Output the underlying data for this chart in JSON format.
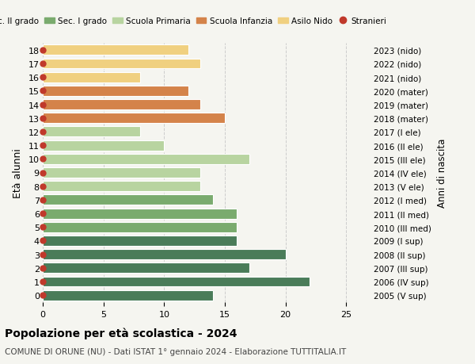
{
  "ages": [
    0,
    1,
    2,
    3,
    4,
    5,
    6,
    7,
    8,
    9,
    10,
    11,
    12,
    13,
    14,
    15,
    16,
    17,
    18
  ],
  "values": [
    12,
    13,
    8,
    12,
    13,
    15,
    8,
    10,
    17,
    13,
    13,
    14,
    16,
    16,
    16,
    20,
    17,
    22,
    14
  ],
  "right_labels": [
    "2023 (nido)",
    "2022 (nido)",
    "2021 (nido)",
    "2020 (mater)",
    "2019 (mater)",
    "2018 (mater)",
    "2017 (I ele)",
    "2016 (II ele)",
    "2015 (III ele)",
    "2014 (IV ele)",
    "2013 (V ele)",
    "2012 (I med)",
    "2011 (II med)",
    "2010 (III med)",
    "2009 (I sup)",
    "2008 (II sup)",
    "2007 (III sup)",
    "2006 (IV sup)",
    "2005 (V sup)"
  ],
  "colors": [
    "#f0d080",
    "#f0d080",
    "#f0d080",
    "#d4834a",
    "#d4834a",
    "#d4834a",
    "#b8d4a0",
    "#b8d4a0",
    "#b8d4a0",
    "#b8d4a0",
    "#b8d4a0",
    "#7aab6e",
    "#7aab6e",
    "#7aab6e",
    "#4a7c59",
    "#4a7c59",
    "#4a7c59",
    "#4a7c59",
    "#4a7c59"
  ],
  "legend_labels": [
    "Sec. II grado",
    "Sec. I grado",
    "Scuola Primaria",
    "Scuola Infanzia",
    "Asilo Nido",
    "Stranieri"
  ],
  "legend_colors": [
    "#4a7c59",
    "#7aab6e",
    "#b8d4a0",
    "#d4834a",
    "#f0d080",
    "#c0392b"
  ],
  "title": "Popolazione per età scolastica - 2024",
  "subtitle": "COMUNE DI ORUNE (NU) - Dati ISTAT 1° gennaio 2024 - Elaborazione TUTTITALIA.IT",
  "ylabel": "Età alunni",
  "ylabel_right": "Anni di nascita",
  "xlim": [
    0,
    27
  ],
  "background_color": "#f5f5f0",
  "dot_color": "#c0392b",
  "dot_size": 25,
  "grid_color": "#cccccc"
}
